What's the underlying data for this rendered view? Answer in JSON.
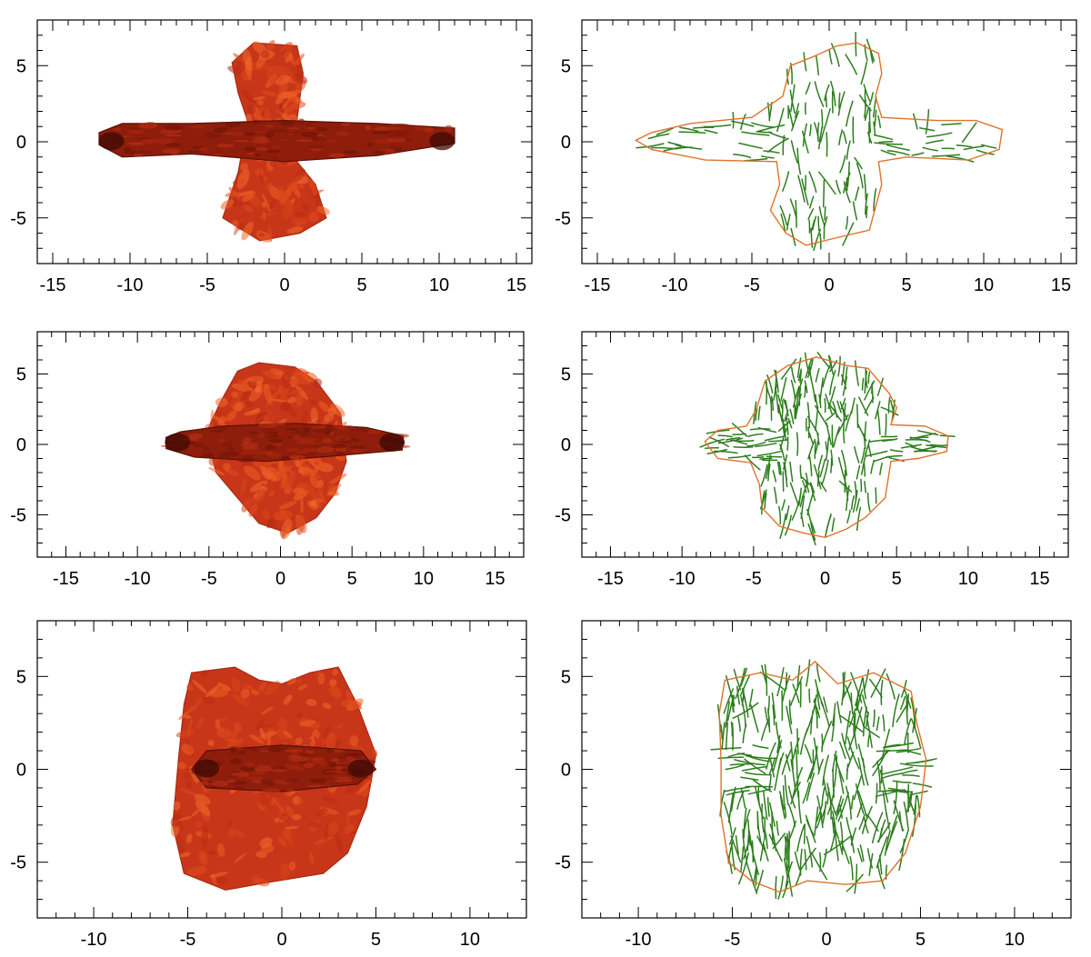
{
  "chart_data": [
    {
      "id": "p1",
      "type": "image",
      "render": "density",
      "xlim": [
        -16,
        16
      ],
      "ylim": [
        -8,
        8
      ],
      "xticks": [
        -15,
        -10,
        -5,
        0,
        5,
        10,
        15
      ],
      "yticks": [
        -5,
        0,
        5
      ],
      "xtick_labels": [
        "-15",
        "-10",
        "-5",
        "0",
        "5",
        "10",
        "15"
      ],
      "ytick_labels": [
        "-5",
        "0",
        "5"
      ],
      "jet": [
        [
          -12,
          -0.2
        ],
        [
          -10.5,
          -1.0
        ],
        [
          -6,
          -0.8
        ],
        [
          0,
          -1.3
        ],
        [
          6,
          -0.9
        ],
        [
          11,
          -0.1
        ],
        [
          11,
          0.9
        ],
        [
          6,
          1.2
        ],
        [
          0,
          1.4
        ],
        [
          -6,
          1.2
        ],
        [
          -10.5,
          1.2
        ],
        [
          -12,
          0.6
        ]
      ],
      "lobe": [
        [
          -3.4,
          5.2
        ],
        [
          -2.0,
          6.5
        ],
        [
          0.8,
          6.3
        ],
        [
          1.2,
          4.5
        ],
        [
          0.8,
          1.4
        ],
        [
          0.8,
          -1.3
        ],
        [
          2.0,
          -2.8
        ],
        [
          2.7,
          -5.0
        ],
        [
          1.0,
          -6.0
        ],
        [
          -1.6,
          -6.5
        ],
        [
          -4.0,
          -5.0
        ],
        [
          -3.0,
          -2.0
        ],
        [
          -2.4,
          1.4
        ],
        [
          -3.0,
          3.2
        ]
      ]
    },
    {
      "id": "p2",
      "type": "contour",
      "render": "field",
      "xlim": [
        -16,
        16
      ],
      "ylim": [
        -8,
        8
      ],
      "xticks": [
        -15,
        -10,
        -5,
        0,
        5,
        10,
        15
      ],
      "yticks": [
        -5,
        0,
        5
      ],
      "xtick_labels": [
        "-15",
        "-10",
        "-5",
        "0",
        "5",
        "10",
        "15"
      ],
      "ytick_labels": [
        "-5",
        "0",
        "5"
      ],
      "contour": [
        [
          -12.5,
          0.1
        ],
        [
          -11.5,
          0.6
        ],
        [
          -9,
          1.2
        ],
        [
          -5,
          1.6
        ],
        [
          -3,
          3.0
        ],
        [
          -2.5,
          5.0
        ],
        [
          -1,
          5.6
        ],
        [
          0.5,
          6.3
        ],
        [
          1.8,
          6.5
        ],
        [
          3.2,
          5.8
        ],
        [
          3.4,
          4.5
        ],
        [
          3.0,
          3.0
        ],
        [
          3.4,
          1.6
        ],
        [
          7,
          1.4
        ],
        [
          9.5,
          1.4
        ],
        [
          11.2,
          0.8
        ],
        [
          11.0,
          -0.5
        ],
        [
          9,
          -1.2
        ],
        [
          5,
          -1.0
        ],
        [
          3.2,
          -1.3
        ],
        [
          3.4,
          -2.8
        ],
        [
          2.6,
          -5.8
        ],
        [
          0.5,
          -6.3
        ],
        [
          -1.5,
          -6.8
        ],
        [
          -2.8,
          -6.0
        ],
        [
          -3.8,
          -4.5
        ],
        [
          -3.2,
          -2.8
        ],
        [
          -3.4,
          -1.3
        ],
        [
          -8,
          -1.2
        ],
        [
          -11.5,
          -0.5
        ]
      ]
    },
    {
      "id": "p3",
      "type": "image",
      "render": "density",
      "xlim": [
        -17,
        17
      ],
      "ylim": [
        -8,
        8
      ],
      "xticks": [
        -15,
        -10,
        -5,
        0,
        5,
        10,
        15
      ],
      "yticks": [
        -5,
        0,
        5
      ],
      "xtick_labels": [
        "-15",
        "-10",
        "-5",
        "0",
        "5",
        "10",
        "15"
      ],
      "ytick_labels": [
        "-5",
        "0",
        "5"
      ],
      "jet": [
        [
          -8,
          -0.3
        ],
        [
          -6,
          -0.9
        ],
        [
          -1,
          -1.2
        ],
        [
          4,
          -0.8
        ],
        [
          8.5,
          -0.4
        ],
        [
          8.6,
          0.6
        ],
        [
          6,
          1.2
        ],
        [
          1,
          1.5
        ],
        [
          -4,
          1.3
        ],
        [
          -7,
          0.9
        ],
        [
          -8,
          0.5
        ]
      ],
      "lobe": [
        [
          -4.2,
          3.0
        ],
        [
          -3.0,
          5.2
        ],
        [
          -1.5,
          5.8
        ],
        [
          1.0,
          5.5
        ],
        [
          2.5,
          4.5
        ],
        [
          4.2,
          2.2
        ],
        [
          4.6,
          -1.2
        ],
        [
          3.8,
          -3.5
        ],
        [
          2.5,
          -5.2
        ],
        [
          0.5,
          -6.3
        ],
        [
          -1.5,
          -5.6
        ],
        [
          -3.0,
          -3.8
        ],
        [
          -4.5,
          -2.0
        ],
        [
          -5.2,
          0.8
        ]
      ]
    },
    {
      "id": "p4",
      "type": "contour",
      "render": "field",
      "xlim": [
        -17,
        17
      ],
      "ylim": [
        -8,
        8
      ],
      "xticks": [
        -15,
        -10,
        -5,
        0,
        5,
        10,
        15
      ],
      "yticks": [
        -5,
        0,
        5
      ],
      "xtick_labels": [
        "-15",
        "-10",
        "-5",
        "0",
        "5",
        "10",
        "15"
      ],
      "ytick_labels": [
        "-5",
        "0",
        "5"
      ],
      "contour": [
        [
          -8.4,
          0.2
        ],
        [
          -7.5,
          1.0
        ],
        [
          -5.5,
          1.3
        ],
        [
          -4.8,
          2.5
        ],
        [
          -4.2,
          4.5
        ],
        [
          -2.6,
          5.6
        ],
        [
          -0.6,
          6.2
        ],
        [
          1.5,
          5.6
        ],
        [
          3.0,
          5.4
        ],
        [
          4.5,
          3.6
        ],
        [
          5.0,
          2.6
        ],
        [
          4.6,
          1.4
        ],
        [
          7,
          1.3
        ],
        [
          8.6,
          0.6
        ],
        [
          8.5,
          -0.5
        ],
        [
          6.5,
          -1.0
        ],
        [
          4.6,
          -1.2
        ],
        [
          4.2,
          -3.8
        ],
        [
          2.8,
          -5.2
        ],
        [
          1.5,
          -6.0
        ],
        [
          0,
          -6.6
        ],
        [
          -1.5,
          -6.3
        ],
        [
          -3.2,
          -5.8
        ],
        [
          -4.4,
          -4.5
        ],
        [
          -4.6,
          -2.8
        ],
        [
          -5.2,
          -1.3
        ],
        [
          -7.5,
          -1.0
        ]
      ]
    },
    {
      "id": "p5",
      "type": "image",
      "render": "density",
      "xlim": [
        -13,
        13
      ],
      "ylim": [
        -8,
        8
      ],
      "xticks": [
        -10,
        -5,
        0,
        5,
        10
      ],
      "yticks": [
        -5,
        0,
        5
      ],
      "xtick_labels": [
        "-10",
        "-5",
        "0",
        "5",
        "10"
      ],
      "ytick_labels": [
        "-5",
        "0",
        "5"
      ],
      "jet": [
        [
          -4.8,
          0.0
        ],
        [
          -4.0,
          -1.0
        ],
        [
          0,
          -1.2
        ],
        [
          4.0,
          -0.8
        ],
        [
          5.0,
          0.0
        ],
        [
          4.2,
          1.0
        ],
        [
          0,
          1.3
        ],
        [
          -4.0,
          1.0
        ]
      ],
      "lobe": [
        [
          -4.8,
          5.2
        ],
        [
          -2.5,
          5.5
        ],
        [
          -1.2,
          4.8
        ],
        [
          0,
          4.6
        ],
        [
          1.5,
          5.2
        ],
        [
          3.0,
          5.5
        ],
        [
          4.0,
          3.5
        ],
        [
          5.0,
          0.8
        ],
        [
          4.5,
          -2.0
        ],
        [
          3.5,
          -4.5
        ],
        [
          2.2,
          -5.6
        ],
        [
          -0.8,
          -6.1
        ],
        [
          -3.0,
          -6.5
        ],
        [
          -5.2,
          -5.6
        ],
        [
          -5.8,
          -3.0
        ],
        [
          -5.5,
          0.5
        ],
        [
          -5.2,
          3.5
        ]
      ]
    },
    {
      "id": "p6",
      "type": "contour",
      "render": "field",
      "xlim": [
        -13,
        13
      ],
      "ylim": [
        -8,
        8
      ],
      "xticks": [
        -10,
        -5,
        0,
        5,
        10
      ],
      "yticks": [
        -5,
        0,
        5
      ],
      "xtick_labels": [
        "-10",
        "-5",
        "0",
        "5",
        "10"
      ],
      "ytick_labels": [
        "-5",
        "0",
        "5"
      ],
      "contour": [
        [
          -5.4,
          4.8
        ],
        [
          -3.5,
          5.2
        ],
        [
          -1.8,
          4.8
        ],
        [
          -0.6,
          5.8
        ],
        [
          0.6,
          4.6
        ],
        [
          2.5,
          5.2
        ],
        [
          4.5,
          4.2
        ],
        [
          4.8,
          2.5
        ],
        [
          5.3,
          0.5
        ],
        [
          5.0,
          -2.0
        ],
        [
          4.2,
          -4.5
        ],
        [
          3.0,
          -6.0
        ],
        [
          1.0,
          -6.2
        ],
        [
          -1.0,
          -6.0
        ],
        [
          -2.5,
          -6.6
        ],
        [
          -4.0,
          -6.0
        ],
        [
          -5.2,
          -5.0
        ],
        [
          -5.6,
          -2.5
        ],
        [
          -5.6,
          0.5
        ],
        [
          -5.7,
          3.0
        ]
      ]
    }
  ]
}
